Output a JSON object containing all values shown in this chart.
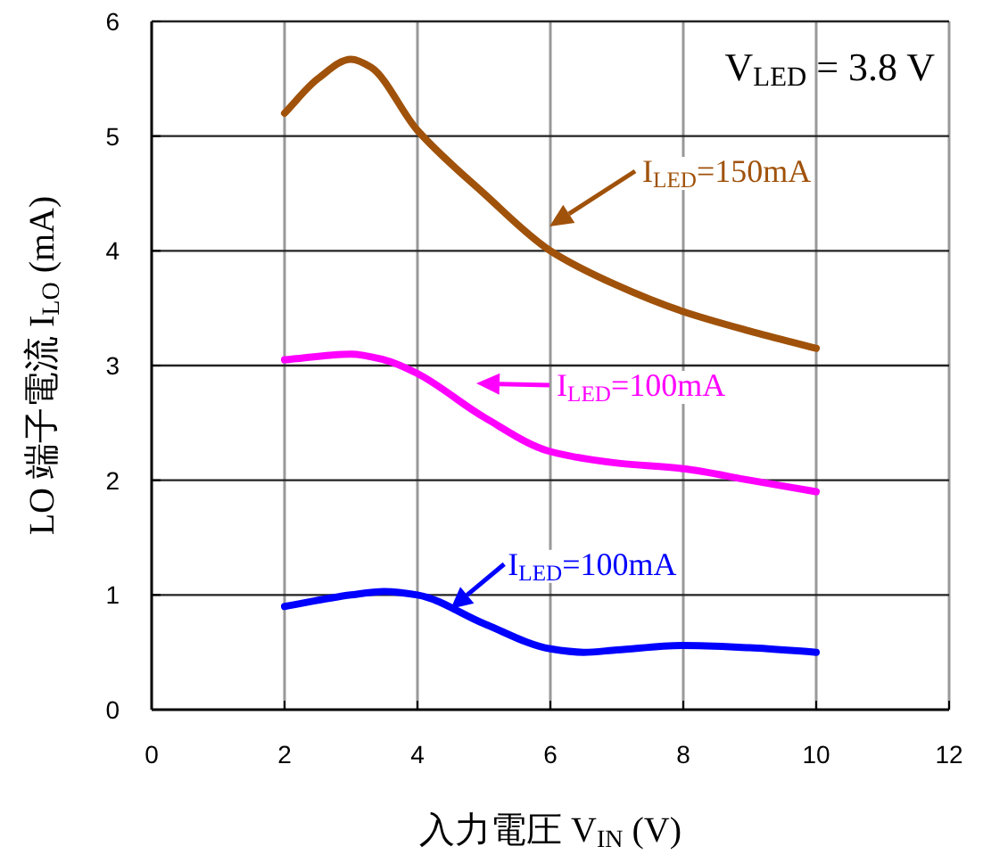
{
  "chart_data": {
    "type": "line",
    "xlabel": "入力電圧 V$_{IN}$ (V)",
    "ylabel": "LO 端子電流 I$_{LO}$ (mA)",
    "xlim": [
      0,
      12
    ],
    "xticks": [
      0,
      2,
      4,
      6,
      8,
      10,
      12
    ],
    "ylim": [
      0,
      6
    ],
    "yticks": [
      0,
      1,
      2,
      3,
      4,
      5,
      6
    ],
    "grid": true,
    "marker": "none",
    "line_style": "solid",
    "series": [
      {
        "color": "#a0520a",
        "x": [
          2,
          2.5,
          3,
          3.3,
          4,
          5,
          6,
          7,
          8,
          9,
          10
        ],
        "values": [
          5.2,
          5.5,
          5.67,
          5.6,
          5.05,
          4.5,
          4.0,
          3.7,
          3.47,
          3.3,
          3.15
        ]
      },
      {
        "color": "#ff00ff",
        "x": [
          2,
          3,
          3.5,
          4,
          5,
          6,
          7,
          8,
          9,
          10
        ],
        "values": [
          3.05,
          3.1,
          3.05,
          2.93,
          2.55,
          2.25,
          2.15,
          2.1,
          2.0,
          1.9
        ]
      },
      {
        "color": "#0000ff",
        "x": [
          2,
          3,
          3.5,
          4,
          5,
          6,
          6.5,
          7,
          8,
          9,
          10
        ],
        "values": [
          0.9,
          1.0,
          1.03,
          1.0,
          0.75,
          0.53,
          0.5,
          0.52,
          0.56,
          0.54,
          0.5
        ]
      }
    ],
    "annotations": [
      "I$_{LED}$=150mA",
      "I$_{LED}$=100mA",
      {
        "text": "I$_{LED}$=100mA",
        "x": 4.5,
        "y": 0.88
      },
      "V$_{LED}$ = 3.8 V"
    ]
  }
}
